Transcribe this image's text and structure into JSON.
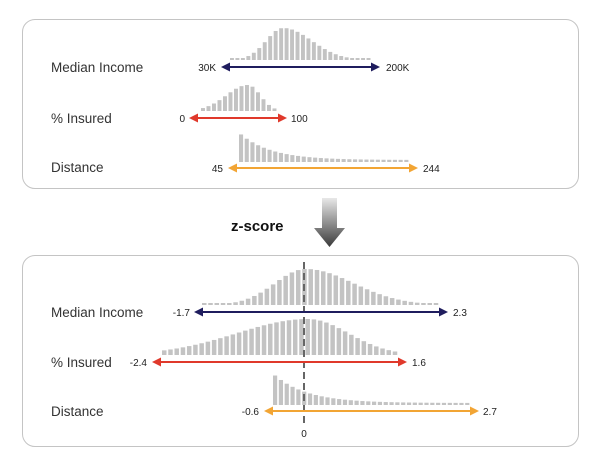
{
  "transform_label": "z-score",
  "zero_label": "0",
  "colors": {
    "median_income": "#1f1d5e",
    "insured": "#e0392b",
    "distance": "#f2a534",
    "bars": "#c3c3c3",
    "panel_border": "#c4c4c4",
    "zero_line": "#666666"
  },
  "before": {
    "rows": [
      {
        "label": "Median Income",
        "min": "30K",
        "max": "200K",
        "color": "#1f1d5e"
      },
      {
        "label": "% Insured",
        "min": "0",
        "max": "100",
        "color": "#e0392b"
      },
      {
        "label": "Distance",
        "min": "45",
        "max": "244",
        "color": "#f2a534"
      }
    ]
  },
  "after": {
    "rows": [
      {
        "label": "Median Income",
        "min": "-1.7",
        "max": "2.3",
        "color": "#1f1d5e"
      },
      {
        "label": "% Insured",
        "min": "-2.4",
        "max": "1.6",
        "color": "#e0392b"
      },
      {
        "label": "Distance",
        "min": "-0.6",
        "max": "2.7",
        "color": "#f2a534"
      }
    ]
  }
}
